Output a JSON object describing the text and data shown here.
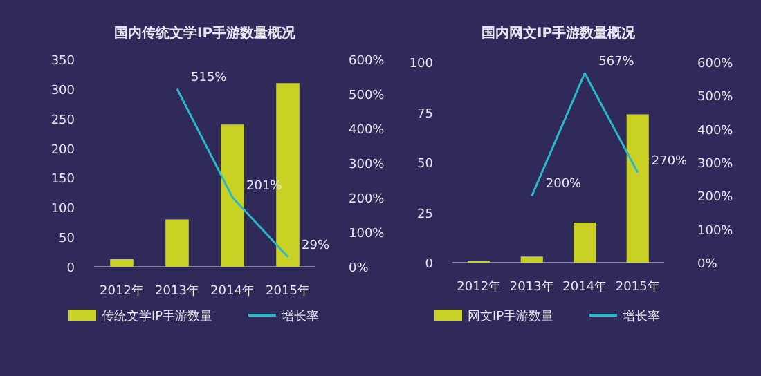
{
  "chart_data": [
    {
      "type": "bar",
      "title": "国内传统文学IP手游数量概况",
      "categories": [
        "2012年",
        "2013年",
        "2014年",
        "2015年"
      ],
      "ylim": [
        0,
        350
      ],
      "yticks": [
        0,
        50,
        100,
        150,
        200,
        250,
        300,
        350
      ],
      "y2lim": [
        0,
        600
      ],
      "y2ticks": [
        {
          "value": 0,
          "label": "0%"
        },
        {
          "value": 100,
          "label": "100%"
        },
        {
          "value": 200,
          "label": "200%"
        },
        {
          "value": 300,
          "label": "300%"
        },
        {
          "value": 400,
          "label": "400%"
        },
        {
          "value": 500,
          "label": "500%"
        },
        {
          "value": 600,
          "label": "600%"
        }
      ],
      "legend": "bottom",
      "series": [
        {
          "name": "传统文学IP手游数量",
          "color": "#c9d124",
          "values": [
            13,
            80,
            240,
            310
          ]
        },
        {
          "name": "增长率",
          "type": "line",
          "axis": "y2",
          "color": "#2bb8c8",
          "values": [
            null,
            515,
            201,
            29
          ],
          "value_labels": [
            null,
            "515%",
            "201%",
            "29%"
          ]
        }
      ]
    },
    {
      "type": "bar",
      "title": "国内网文IP手游数量概况",
      "categories": [
        "2012年",
        "2013年",
        "2014年",
        "2015年"
      ],
      "ylim": [
        0,
        100
      ],
      "yticks": [
        0,
        25,
        50,
        75,
        100
      ],
      "y2lim": [
        0,
        600
      ],
      "y2ticks": [
        {
          "value": 0,
          "label": "0%"
        },
        {
          "value": 100,
          "label": "100%"
        },
        {
          "value": 200,
          "label": "200%"
        },
        {
          "value": 300,
          "label": "300%"
        },
        {
          "value": 400,
          "label": "400%"
        },
        {
          "value": 500,
          "label": "500%"
        },
        {
          "value": 600,
          "label": "600%"
        }
      ],
      "legend": "bottom",
      "series": [
        {
          "name": "网文IP手游数量",
          "color": "#c9d124",
          "values": [
            1,
            3,
            20,
            74
          ]
        },
        {
          "name": "增长率",
          "type": "line",
          "axis": "y2",
          "color": "#2bb8c8",
          "values": [
            null,
            200,
            567,
            270
          ],
          "value_labels": [
            null,
            "200%",
            "567%",
            "270%"
          ]
        }
      ]
    }
  ]
}
